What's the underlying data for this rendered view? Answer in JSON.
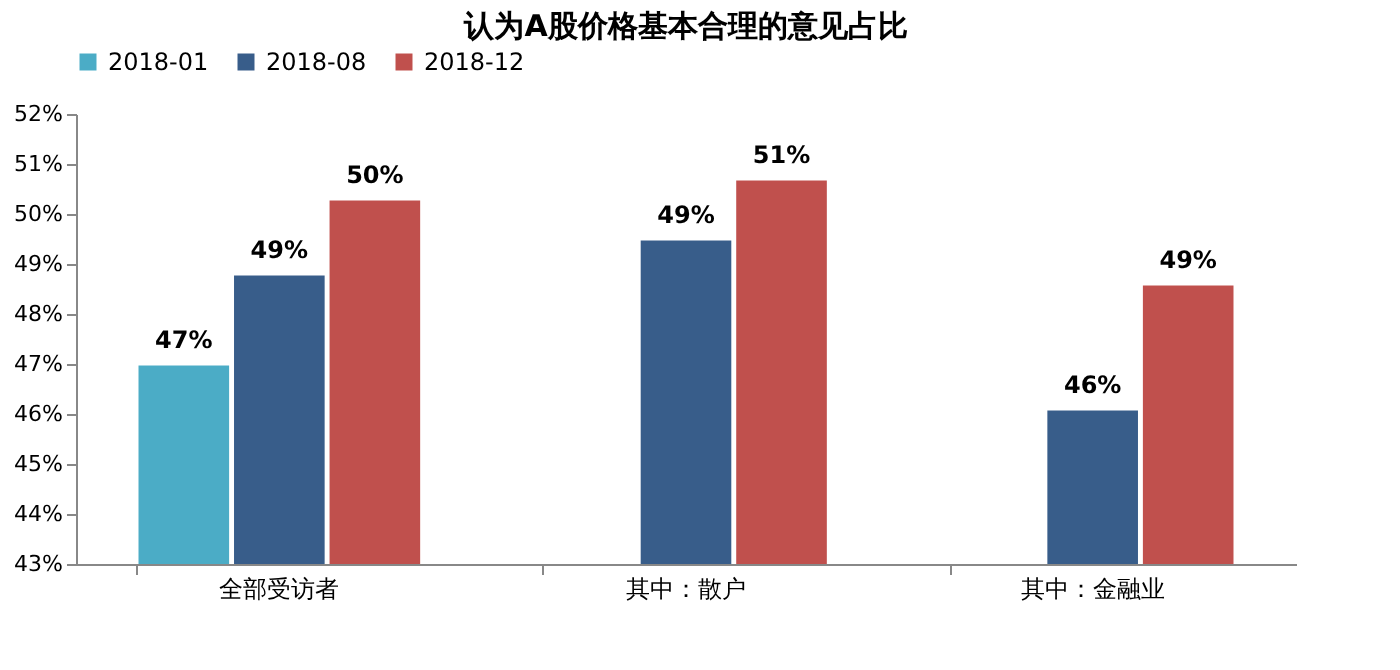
{
  "chart_data": {
    "type": "bar",
    "title": "认为A股价格基本合理的意见占比",
    "categories": [
      "全部受访者",
      "其中：散户",
      "其中：金融业"
    ],
    "series": [
      {
        "name": "2018-01",
        "color": "#4bacc6",
        "values": [
          47.0,
          null,
          null
        ],
        "value_labels": [
          "47%",
          null,
          null
        ]
      },
      {
        "name": "2018-08",
        "color": "#385d8a",
        "values": [
          48.8,
          49.5,
          46.1
        ],
        "value_labels": [
          "49%",
          "49%",
          "46%"
        ]
      },
      {
        "name": "2018-12",
        "color": "#c0504d",
        "values": [
          50.3,
          50.7,
          48.6
        ],
        "value_labels": [
          "50%",
          "51%",
          "49%"
        ]
      }
    ],
    "ylim": [
      43,
      52
    ],
    "yticks": [
      {
        "value": 43,
        "label": "43%"
      },
      {
        "value": 44,
        "label": "44%"
      },
      {
        "value": 45,
        "label": "45%"
      },
      {
        "value": 46,
        "label": "46%"
      },
      {
        "value": 47,
        "label": "47%"
      },
      {
        "value": 48,
        "label": "48%"
      },
      {
        "value": 49,
        "label": "49%"
      },
      {
        "value": 50,
        "label": "50%"
      },
      {
        "value": 51,
        "label": "51%"
      },
      {
        "value": 52,
        "label": "52%"
      }
    ],
    "grid": false,
    "legend": "top"
  }
}
